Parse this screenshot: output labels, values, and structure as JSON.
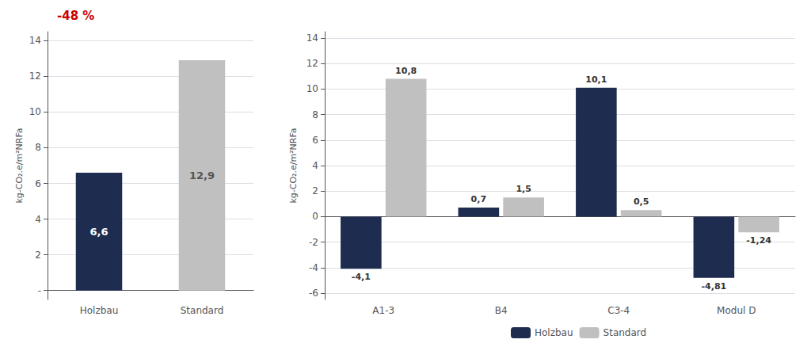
{
  "chart_data": [
    {
      "type": "bar",
      "categories": [
        "Holzbau",
        "Standard"
      ],
      "values": [
        6.6,
        12.9
      ],
      "colors": [
        "#1e2d4f",
        "#c0c0c0"
      ],
      "value_labels": [
        "6,6",
        "12,9"
      ],
      "data_labels": true,
      "ylabel": "kg-CO₂.e/m²NRFa",
      "ylim": [
        -0.5,
        14.5
      ],
      "yticks": [
        {
          "value": 0,
          "label": "-"
        },
        2,
        4,
        6,
        8,
        10,
        12,
        14
      ],
      "grid": true,
      "annotations": [
        {
          "text": "-48 %",
          "color": "#cc0000"
        }
      ]
    },
    {
      "type": "bar",
      "categories": [
        "A1-3",
        "B4",
        "C3-4",
        "Modul D"
      ],
      "series": [
        {
          "name": "Holzbau",
          "color": "#1e2d4f",
          "values": [
            -4.1,
            0.7,
            10.1,
            -4.81
          ],
          "value_labels": [
            "-4,1",
            "0,7",
            "10,1",
            "-4,81"
          ]
        },
        {
          "name": "Standard",
          "color": "#c0c0c0",
          "values": [
            10.8,
            1.5,
            0.5,
            -1.24
          ],
          "value_labels": [
            "10,8",
            "1,5",
            "0,5",
            "-1,24"
          ]
        }
      ],
      "data_labels": true,
      "ylabel": "kg-CO₂.e/m²NRFa",
      "ylim": [
        -6.5,
        14.5
      ],
      "yticks": [
        -6,
        -4,
        -2,
        0,
        2,
        4,
        6,
        8,
        10,
        12,
        14
      ],
      "grid": true,
      "legend": "bottom"
    }
  ]
}
